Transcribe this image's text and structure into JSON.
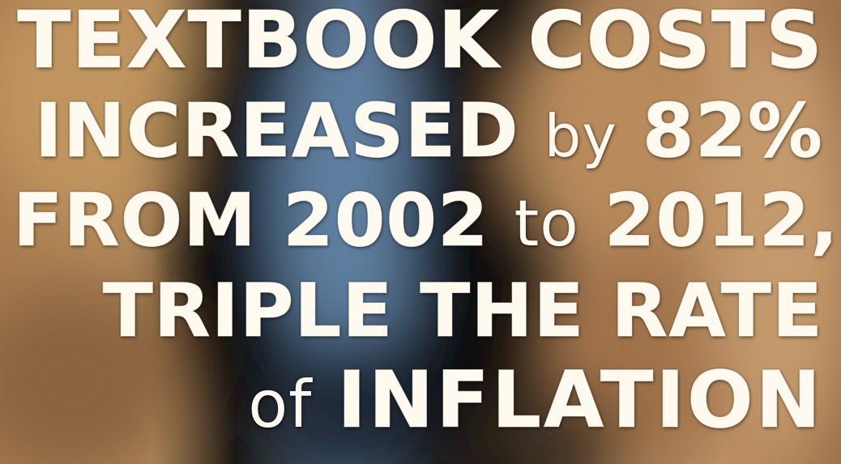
{
  "headline": {
    "line1": {
      "bold": "TEXTBOOK COSTS"
    },
    "line2": {
      "bold": "INCREASED",
      "thin": "by",
      "bold2": "82%"
    },
    "line3": {
      "bold": "FROM 2002",
      "thin": "to",
      "bold2": "2012,"
    },
    "line4": {
      "bold": "TRIPLE THE RATE"
    },
    "line5": {
      "thin": "of",
      "bold": "INFLATION"
    }
  },
  "colors": {
    "text": "#fffaf0",
    "background_dark": "#1c1a17",
    "background_tan": "#b08860",
    "background_blue": "#5a7896"
  }
}
